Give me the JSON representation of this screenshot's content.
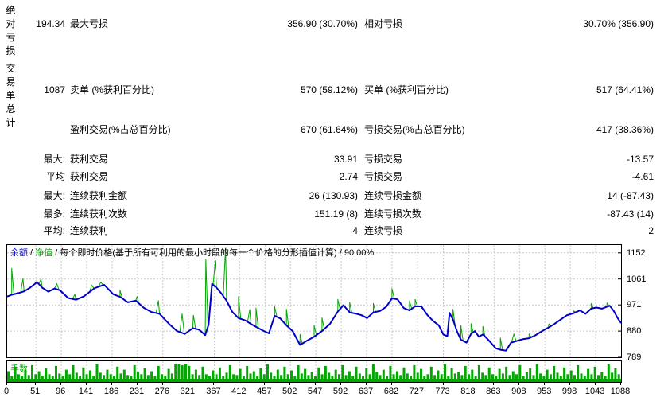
{
  "sections": {
    "absolute_drawdown_vlabel": "绝对亏损",
    "total_trades_vlabel": "交易单总计"
  },
  "stats": {
    "rows": [
      {
        "c1": "194.34",
        "c2": "最大亏损",
        "c3": "356.90 (30.70%)",
        "c4": "相对亏损",
        "c5": "30.70% (356.90)"
      },
      {
        "c1": "1087",
        "c2": "卖单 (%获利百分比)",
        "c3": "570 (59.12%)",
        "c4": "买单 (%获利百分比)",
        "c5": "517 (64.41%)"
      },
      {
        "c1": "",
        "c2": "盈利交易(%占总百分比)",
        "c3": "670 (61.64%)",
        "c4": "亏损交易(%占总百分比)",
        "c5": "417 (38.36%)"
      },
      {
        "c1": "最大:",
        "c2": "获利交易",
        "c3": "33.91",
        "c4": "亏损交易",
        "c5": "-13.57"
      },
      {
        "c1": "平均",
        "c2": "获利交易",
        "c3": "2.74",
        "c4": "亏损交易",
        "c5": "-4.61"
      },
      {
        "c1": "最大:",
        "c2": "连续获利金额",
        "c3": "26 (130.93)",
        "c4": "连续亏损金额",
        "c5": "14 (-87.43)"
      },
      {
        "c1": "最多:",
        "c2": "连续获利次数",
        "c3": "151.19 (8)",
        "c4": "连续亏损次数",
        "c5": "-87.43 (14)"
      },
      {
        "c1": "平均:",
        "c2": "连续获利",
        "c3": "4",
        "c4": "连续亏损",
        "c5": "2"
      }
    ]
  },
  "legend": {
    "balance_label": "余额",
    "sep": " / ",
    "equity_label": "净值",
    "desc": "每个即时价格(基于所有可利用的最小时段的每一个价格的分形插值计算)",
    "sep2": " / ",
    "percent": "90.00%",
    "lots_label": "手数"
  },
  "colors": {
    "balance": "#0000C8",
    "equity": "#00A800",
    "bars": "#00A800",
    "grid": "#C8C8C8"
  },
  "chart_data": {
    "type": "line",
    "title": "余额 / 净值 / 每个即时价格(基于所有可利用的最小时段的每一个价格的分形插值计算) / 90.00%",
    "x_max": 1088,
    "y_top": 1179,
    "y_bottom": 789,
    "y_ticks": [
      1152,
      1061,
      971,
      880,
      789
    ],
    "x_ticks": [
      0,
      51,
      96,
      141,
      186,
      231,
      276,
      321,
      367,
      412,
      457,
      502,
      547,
      592,
      637,
      682,
      727,
      773,
      818,
      863,
      908,
      953,
      998,
      1043,
      1088
    ],
    "balance": [
      [
        0,
        1000
      ],
      [
        8,
        1006
      ],
      [
        20,
        1012
      ],
      [
        30,
        1018
      ],
      [
        40,
        1030
      ],
      [
        53,
        1050
      ],
      [
        62,
        1031
      ],
      [
        73,
        1017
      ],
      [
        84,
        1028
      ],
      [
        94,
        1021
      ],
      [
        108,
        995
      ],
      [
        122,
        989
      ],
      [
        136,
        1001
      ],
      [
        155,
        1029
      ],
      [
        172,
        1041
      ],
      [
        188,
        1008
      ],
      [
        200,
        999
      ],
      [
        214,
        980
      ],
      [
        228,
        986
      ],
      [
        242,
        961
      ],
      [
        256,
        946
      ],
      [
        270,
        940
      ],
      [
        287,
        905
      ],
      [
        301,
        880
      ],
      [
        315,
        870
      ],
      [
        329,
        890
      ],
      [
        340,
        885
      ],
      [
        351,
        866
      ],
      [
        357,
        902
      ],
      [
        363,
        1044
      ],
      [
        371,
        1031
      ],
      [
        380,
        1010
      ],
      [
        389,
        985
      ],
      [
        399,
        947
      ],
      [
        410,
        925
      ],
      [
        422,
        917
      ],
      [
        432,
        905
      ],
      [
        441,
        895
      ],
      [
        453,
        882
      ],
      [
        464,
        872
      ],
      [
        474,
        933
      ],
      [
        484,
        924
      ],
      [
        495,
        900
      ],
      [
        506,
        880
      ],
      [
        519,
        832
      ],
      [
        530,
        845
      ],
      [
        544,
        860
      ],
      [
        558,
        880
      ],
      [
        572,
        905
      ],
      [
        586,
        948
      ],
      [
        596,
        970
      ],
      [
        607,
        945
      ],
      [
        619,
        940
      ],
      [
        628,
        935
      ],
      [
        638,
        925
      ],
      [
        649,
        945
      ],
      [
        661,
        950
      ],
      [
        672,
        965
      ],
      [
        682,
        994
      ],
      [
        692,
        990
      ],
      [
        703,
        960
      ],
      [
        713,
        952
      ],
      [
        723,
        966
      ],
      [
        734,
        966
      ],
      [
        745,
        935
      ],
      [
        755,
        915
      ],
      [
        765,
        900
      ],
      [
        773,
        868
      ],
      [
        780,
        862
      ],
      [
        784,
        943
      ],
      [
        790,
        920
      ],
      [
        797,
        880
      ],
      [
        804,
        850
      ],
      [
        814,
        840
      ],
      [
        822,
        870
      ],
      [
        829,
        880
      ],
      [
        836,
        860
      ],
      [
        843,
        868
      ],
      [
        850,
        855
      ],
      [
        857,
        840
      ],
      [
        866,
        820
      ],
      [
        874,
        815
      ],
      [
        884,
        812
      ],
      [
        893,
        840
      ],
      [
        902,
        845
      ],
      [
        914,
        852
      ],
      [
        925,
        855
      ],
      [
        936,
        865
      ],
      [
        948,
        880
      ],
      [
        959,
        892
      ],
      [
        970,
        905
      ],
      [
        981,
        920
      ],
      [
        992,
        935
      ],
      [
        1004,
        942
      ],
      [
        1015,
        952
      ],
      [
        1025,
        940
      ],
      [
        1035,
        958
      ],
      [
        1044,
        962
      ],
      [
        1054,
        958
      ],
      [
        1063,
        965
      ],
      [
        1068,
        968
      ],
      [
        1075,
        950
      ],
      [
        1082,
        925
      ],
      [
        1088,
        908
      ]
    ],
    "equity_spikes": [
      [
        8,
        1098
      ],
      [
        28,
        1062
      ],
      [
        60,
        1060
      ],
      [
        88,
        1045
      ],
      [
        120,
        1008
      ],
      [
        150,
        1040
      ],
      [
        166,
        1050
      ],
      [
        200,
        1022
      ],
      [
        230,
        1000
      ],
      [
        268,
        986
      ],
      [
        310,
        940
      ],
      [
        330,
        935
      ],
      [
        352,
        1130
      ],
      [
        369,
        1125
      ],
      [
        387,
        1168
      ],
      [
        410,
        1000
      ],
      [
        430,
        955
      ],
      [
        441,
        960
      ],
      [
        474,
        966
      ],
      [
        495,
        956
      ],
      [
        519,
        868
      ],
      [
        544,
        900
      ],
      [
        558,
        926
      ],
      [
        586,
        990
      ],
      [
        607,
        980
      ],
      [
        649,
        976
      ],
      [
        682,
        1028
      ],
      [
        713,
        985
      ],
      [
        723,
        990
      ],
      [
        790,
        956
      ],
      [
        804,
        900
      ],
      [
        822,
        906
      ],
      [
        843,
        896
      ],
      [
        874,
        856
      ],
      [
        898,
        870
      ],
      [
        925,
        870
      ],
      [
        960,
        905
      ],
      [
        1004,
        950
      ],
      [
        1035,
        976
      ],
      [
        1063,
        978
      ]
    ],
    "lots": [
      0.5,
      0.2,
      0.8,
      0.3,
      0.2,
      0.6,
      0.25,
      0.9,
      0.3,
      0.5,
      0.2,
      0.7,
      0.3,
      0.2,
      0.85,
      0.35,
      0.2,
      0.6,
      0.3,
      0.9,
      0.4,
      0.2,
      0.75,
      0.3,
      0.55,
      0.2,
      0.95,
      0.4,
      0.25,
      0.6,
      0.3,
      0.2,
      0.8,
      0.35,
      0.6,
      0.25,
      0.2,
      0.9,
      0.45,
      0.3,
      0.7,
      0.25,
      0.5,
      0.2,
      0.85,
      0.3,
      0.2,
      0.65,
      0.35,
      0.95,
      1.0,
      0.9,
      0.95,
      0.85,
      0.3,
      0.6,
      0.25,
      0.8,
      0.3,
      0.2,
      0.55,
      0.3,
      0.75,
      0.2,
      0.4,
      0.9,
      0.3,
      0.25,
      0.65,
      0.2,
      0.85,
      0.35,
      0.5,
      0.2,
      0.7,
      0.3,
      0.95,
      0.4,
      0.2,
      0.6,
      0.25,
      0.8,
      0.3,
      0.55,
      0.2,
      0.9,
      0.35,
      0.65,
      0.25,
      0.45,
      0.2,
      0.75,
      0.3,
      0.85,
      0.4,
      0.2,
      0.6,
      0.3,
      0.9,
      0.25,
      0.5,
      0.2,
      0.8,
      0.35,
      0.2,
      0.7,
      0.3,
      0.95,
      0.45,
      0.25,
      0.6,
      0.2,
      0.85,
      0.3,
      0.5,
      0.25,
      0.75,
      0.35,
      0.2,
      0.9,
      0.4,
      0.65,
      0.2,
      0.3,
      0.8,
      0.25,
      0.55,
      0.3,
      0.95,
      0.2,
      0.7,
      0.35,
      0.45,
      0.25,
      0.85,
      0.3,
      0.6,
      0.2,
      0.9,
      0.4,
      0.25,
      0.75,
      0.3,
      0.2,
      0.65,
      0.35,
      0.8,
      0.25,
      0.5,
      0.3,
      0.9,
      0.2,
      0.45,
      0.7,
      0.25,
      0.95,
      0.35,
      0.2,
      0.6,
      0.3,
      0.85,
      0.4,
      0.2,
      0.75,
      0.3,
      0.55,
      0.25,
      0.9,
      0.35,
      0.2,
      0.65,
      0.3,
      0.8,
      0.25,
      0.45,
      0.2,
      0.95,
      0.4,
      0.7,
      0.3
    ]
  }
}
